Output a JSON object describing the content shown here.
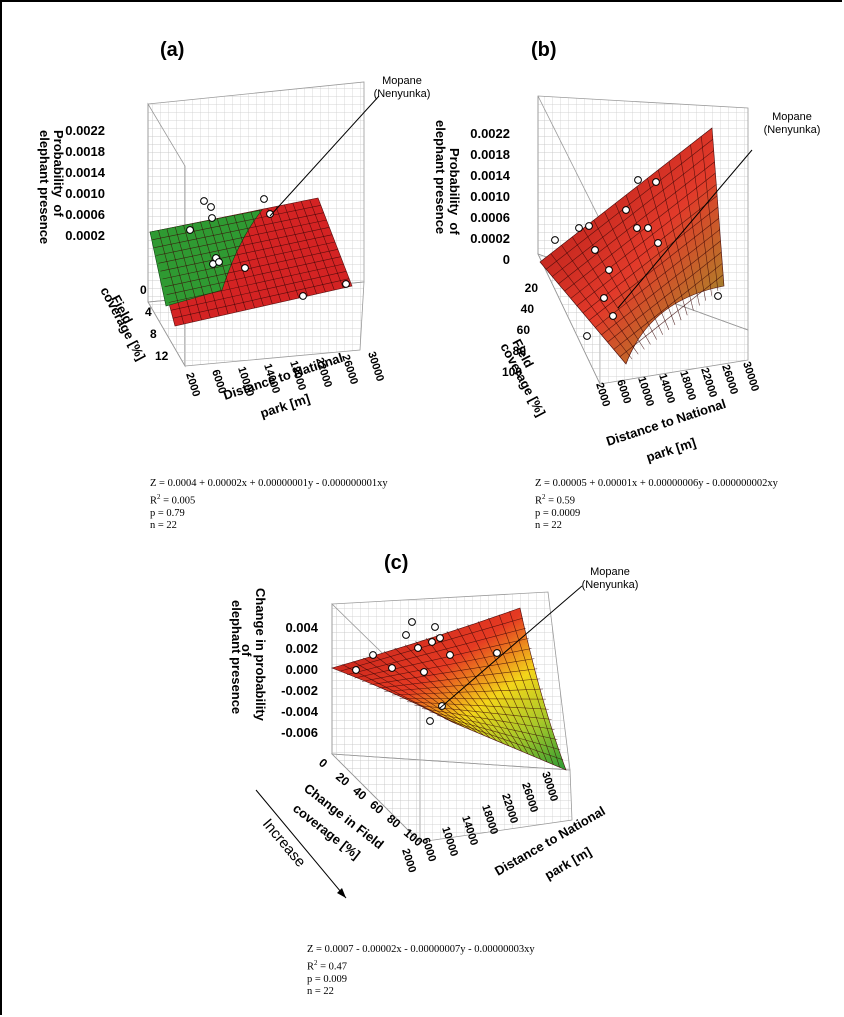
{
  "chart_data": [
    {
      "type": "surface3d",
      "panel_label": "(a)",
      "zlabel": "Probability  of elephant presence",
      "ylabel": "Field coverage [%]",
      "xlabel": "Distance to National park [m]",
      "z_ticks": [
        "0.0022",
        "0.0018",
        "0.0014",
        "0.0010",
        "0.0006",
        "0.0002"
      ],
      "y_ticks": [
        "0",
        "4",
        "8",
        "12"
      ],
      "x_ticks": [
        "2000",
        "6000",
        "10000",
        "14000",
        "18000",
        "22000",
        "26000",
        "30000"
      ],
      "annotation": "Mopane (Nenyunka)",
      "annotation_lines": [
        "Mopane",
        "(Nenyunka)"
      ],
      "equation": "Z = 0.0004 + 0.00002x + 0.00000001y - 0.000000001xy",
      "r2_label": "R",
      "r2_value": "= 0.005",
      "p": "p = 0.79",
      "n": "n = 22",
      "colors": {
        "high": "#d42323",
        "low": "#2f9a32"
      }
    },
    {
      "type": "surface3d",
      "panel_label": "(b)",
      "zlabel": "Probability  of elephant presence",
      "ylabel": "Field coverage [%]",
      "xlabel": "Distance to National park [m]",
      "z_ticks": [
        "0.0022",
        "0.0018",
        "0.0014",
        "0.0010",
        "0.0006",
        "0.0002",
        "0"
      ],
      "y_ticks": [
        "20",
        "40",
        "60",
        "80",
        "100"
      ],
      "x_ticks": [
        "2000",
        "6000",
        "10000",
        "14000",
        "18000",
        "22000",
        "26000",
        "30000"
      ],
      "annotation": "Mopane (Nenyunka)",
      "annotation_lines": [
        "Mopane",
        "(Nenyunka)"
      ],
      "equation": "Z = 0.00005 + 0.00001x + 0.00000006y - 0.000000002xy",
      "r2_label": "R",
      "r2_value": "= 0.59",
      "p": "p = 0.0009",
      "n": "n = 22",
      "colors": {
        "high": "#c81f1f",
        "low": "#3aa53a"
      }
    },
    {
      "type": "surface3d",
      "panel_label": "(c)",
      "zlabel": "Change in probability  of elephant presence",
      "ylabel": "Change in Field coverage [%]",
      "xlabel": "Distance to National park [m]",
      "z_ticks": [
        "0.004",
        "0.002",
        "0.000",
        "-0.002",
        "-0.004",
        "-0.006"
      ],
      "y_ticks": [
        "0",
        "20",
        "40",
        "60",
        "80",
        "100"
      ],
      "x_ticks": [
        "2000",
        "6000",
        "10000",
        "14000",
        "18000",
        "22000",
        "26000",
        "30000"
      ],
      "annotation": "Mopane (Nenyunka)",
      "annotation_lines": [
        "Mopane",
        "(Nenyunka)"
      ],
      "increase_label": "Increase",
      "equation": "Z = 0.0007 - 0.00002x - 0.00000007y - 0.00000003xy",
      "r2_label": "R",
      "r2_value": "= 0.47",
      "p": "p = 0.009",
      "n": "n = 22",
      "colors": {
        "high": "#c81f1f",
        "mid": "#f2e21a",
        "low": "#2f9a32"
      }
    }
  ]
}
